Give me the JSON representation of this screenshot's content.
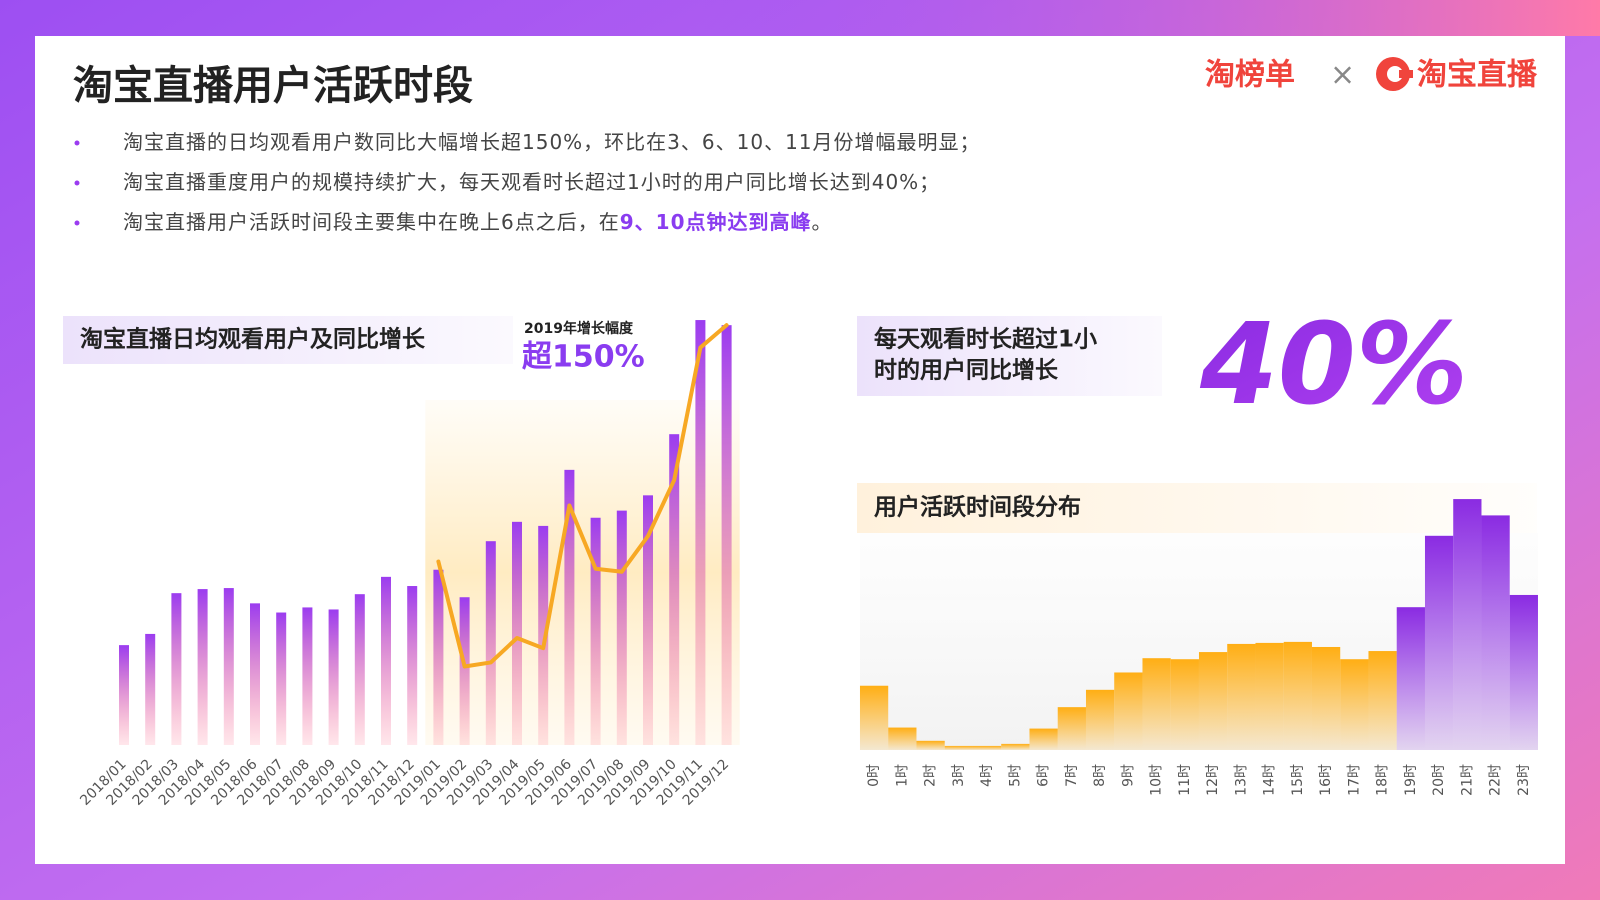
{
  "header": {
    "title": "淘宝直播用户活跃时段",
    "logo_left": "淘榜单",
    "logo_sep": "×",
    "logo_right": "淘宝直播"
  },
  "bullets": [
    {
      "text": "淘宝直播的日均观看用户数同比大幅增长超150%，环比在3、6、10、11月份增幅最明显；"
    },
    {
      "text": "淘宝直播重度用户的规模持续扩大，每天观看时长超过1小时的用户同比增长达到40%；"
    },
    {
      "text": "淘宝直播用户活跃时间段主要集中在晚上6点之后，在",
      "highlight": "9、10点钟达到高峰",
      "end": "。"
    }
  ],
  "stat": {
    "lines": [
      "每天观看时长超过1小",
      "时的用户同比增长"
    ],
    "value": "40%"
  },
  "chart_data": [
    {
      "type": "bar",
      "title": "淘宝直播日均观看用户及同比增长",
      "annotation": {
        "label": "2019年增长幅度",
        "value": "超150%"
      },
      "categories": [
        "2018/01",
        "2018/02",
        "2018/03",
        "2018/04",
        "2018/05",
        "2018/06",
        "2018/07",
        "2018/08",
        "2018/09",
        "2018/10",
        "2018/11",
        "2018/12",
        "2019/01",
        "2019/02",
        "2019/03",
        "2019/04",
        "2019/05",
        "2019/06",
        "2019/07",
        "2019/08",
        "2019/09",
        "2019/10",
        "2019/11",
        "2019/12"
      ],
      "series": [
        {
          "type": "bar",
          "color": "#9b3cf0",
          "values": [
            98,
            109,
            149,
            153,
            154,
            139,
            130,
            135,
            133,
            148,
            165,
            156,
            172,
            145,
            200,
            219,
            215,
            270,
            223,
            230,
            245,
            305,
            417,
            412
          ]
        },
        {
          "type": "line",
          "color": "#f7a823",
          "values": [
            null,
            null,
            null,
            null,
            null,
            null,
            null,
            null,
            null,
            null,
            null,
            null,
            180,
            77,
            81,
            105,
            95,
            235,
            173,
            170,
            205,
            260,
            390,
            412
          ]
        }
      ],
      "ylim": [
        0,
        420
      ]
    },
    {
      "type": "bar",
      "title": "用户活跃时间段分布",
      "categories": [
        "0时",
        "1时",
        "2时",
        "3时",
        "4时",
        "5时",
        "6时",
        "7时",
        "8时",
        "9时",
        "10时",
        "11时",
        "12时",
        "13时",
        "14时",
        "15时",
        "16时",
        "17时",
        "18时",
        "19时",
        "20时",
        "21时",
        "22时",
        "23时"
      ],
      "series": [
        {
          "type": "bar",
          "colors": [
            "#ffae14",
            "#ffae14",
            "#ffae14",
            "#ffae14",
            "#ffae14",
            "#ffae14",
            "#ffae14",
            "#ffae14",
            "#ffae14",
            "#ffae14",
            "#ffae14",
            "#ffae14",
            "#ffae14",
            "#ffae14",
            "#ffae14",
            "#ffae14",
            "#ffae14",
            "#ffae14",
            "#ffae14",
            "#8a2be2",
            "#8a2be2",
            "#8a2be2",
            "#8a2be2",
            "#8a2be2"
          ],
          "values": [
            63,
            22,
            9,
            4,
            4,
            6,
            21,
            42,
            59,
            76,
            90,
            89,
            96,
            104,
            105,
            106,
            101,
            89,
            97,
            140,
            210,
            246,
            230,
            152
          ]
        }
      ],
      "ylim": [
        0,
        250
      ]
    }
  ]
}
